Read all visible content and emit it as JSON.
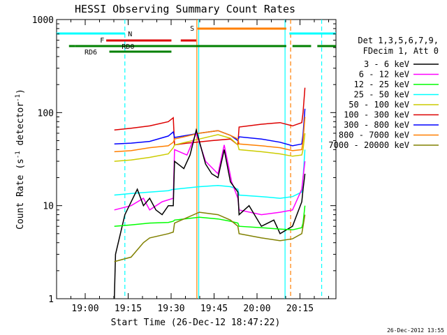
{
  "chart_data": {
    "type": "line",
    "title": "HESSI Observing Summary Count Rates",
    "xlabel": "Start Time (26-Dec-12 18:47:22)",
    "ylabel_parts": [
      "Count Rate (s",
      "-1",
      " detector",
      "-1",
      ")"
    ],
    "yscale": "log",
    "ylim": [
      1,
      1000
    ],
    "xlim_minutes": [
      -15,
      30
    ],
    "x_ticks": [
      "19:00",
      "19:15",
      "19:30",
      "19:45",
      "20:00",
      "20:15"
    ],
    "y_ticks": [
      "1",
      "10",
      "100",
      "1000"
    ],
    "timestamp": "26-Dec-2012 13:55",
    "legend": {
      "header": [
        "Det 1,3,5,6,7,9,",
        "FDecim 1, Att 0"
      ],
      "position": "right",
      "entries": [
        {
          "label": "3 - 6 keV",
          "color": "#000000"
        },
        {
          "label": "6 - 12 keV",
          "color": "#ff00ff"
        },
        {
          "label": "12 - 25 keV",
          "color": "#00ff00"
        },
        {
          "label": "25 - 50 keV",
          "color": "#00ffff"
        },
        {
          "label": "50 - 100 keV",
          "color": "#cccc00"
        },
        {
          "label": "100 - 300 keV",
          "color": "#dd0000"
        },
        {
          "label": "300 - 800 keV",
          "color": "#0000ff"
        },
        {
          "label": "800 - 7000 keV",
          "color": "#ff7f00"
        },
        {
          "label": "7000 - 20000 keV",
          "color": "#808000"
        }
      ]
    },
    "flag_labels": {
      "night": "N",
      "flare": "F",
      "saa": "S",
      "rd0": "RD0",
      "rd6": "RD6"
    },
    "flag_colors": {
      "night": "#00ffff",
      "flare": "#dd0000",
      "saa": "#ff7f00",
      "decim": "#008000"
    },
    "flag_bars": {
      "night": [
        [
          -15,
          -4
        ],
        [
          22.5,
          30
        ]
      ],
      "flare": [
        [
          -7,
          3.5
        ],
        [
          5,
          7.5
        ]
      ],
      "saa": [
        [
          7.7,
          22
        ]
      ],
      "rd0": [
        [
          -13,
          -12
        ],
        [
          -12,
          22
        ],
        [
          23,
          26
        ],
        [
          27,
          30
        ]
      ],
      "rd6": [
        [
          -6.5,
          3.5
        ]
      ]
    },
    "vertical_markers": [
      {
        "t": -4,
        "color": "#00ffff",
        "style": "dashed"
      },
      {
        "t": 7.6,
        "color": "#ff7f00",
        "style": "solid"
      },
      {
        "t": 7.9,
        "color": "#00ffff",
        "style": "solid"
      },
      {
        "t": 21.8,
        "color": "#00ffff",
        "style": "solid"
      },
      {
        "t": 22.7,
        "color": "#ff7f00",
        "style": "dashed"
      },
      {
        "t": 27.7,
        "color": "#00ffff",
        "style": "dashed"
      }
    ],
    "series": [
      {
        "label": "100 - 300 keV",
        "color": "#dd0000",
        "points": [
          [
            -5.7,
            65
          ],
          [
            -3,
            68
          ],
          [
            0,
            72
          ],
          [
            3,
            80
          ],
          [
            3.8,
            88
          ],
          [
            4,
            45
          ],
          [
            6,
            47
          ],
          [
            10,
            50
          ],
          [
            13,
            52
          ],
          [
            14.2,
            45
          ],
          [
            14.4,
            70
          ],
          [
            18,
            75
          ],
          [
            21,
            78
          ],
          [
            23,
            72
          ],
          [
            24.5,
            78
          ],
          [
            24.7,
            100
          ],
          [
            25,
            185
          ]
        ]
      },
      {
        "label": "300 - 800 keV",
        "color": "#0000ff",
        "points": [
          [
            -5.7,
            46
          ],
          [
            -3,
            47
          ],
          [
            0,
            49
          ],
          [
            3,
            56
          ],
          [
            3.8,
            62
          ],
          [
            4,
            54
          ],
          [
            8,
            60
          ],
          [
            11,
            64
          ],
          [
            13,
            57
          ],
          [
            14.2,
            50
          ],
          [
            14.4,
            55
          ],
          [
            18,
            52
          ],
          [
            21,
            48
          ],
          [
            23,
            44
          ],
          [
            24.5,
            46
          ],
          [
            24.7,
            58
          ],
          [
            25,
            110
          ]
        ]
      },
      {
        "label": "800 - 7000 keV",
        "color": "#ff7f00",
        "points": [
          [
            -5.7,
            38
          ],
          [
            -3,
            39
          ],
          [
            0,
            42
          ],
          [
            3,
            44
          ],
          [
            3.8,
            48
          ],
          [
            4,
            52
          ],
          [
            8,
            60
          ],
          [
            11,
            64
          ],
          [
            13,
            57
          ],
          [
            14.2,
            52
          ],
          [
            14.4,
            46
          ],
          [
            18,
            44
          ],
          [
            21,
            42
          ],
          [
            23,
            39
          ],
          [
            24.5,
            40
          ],
          [
            24.7,
            50
          ],
          [
            25,
            90
          ]
        ]
      },
      {
        "label": "50 - 100 keV",
        "color": "#cccc00",
        "points": [
          [
            -5.7,
            30
          ],
          [
            -3,
            31
          ],
          [
            0,
            33
          ],
          [
            3,
            36
          ],
          [
            3.8,
            42
          ],
          [
            4,
            45
          ],
          [
            8,
            52
          ],
          [
            11,
            58
          ],
          [
            13,
            53
          ],
          [
            14.2,
            45
          ],
          [
            14.4,
            40
          ],
          [
            18,
            38
          ],
          [
            21,
            36
          ],
          [
            23,
            34
          ],
          [
            24.5,
            35
          ],
          [
            24.7,
            40
          ],
          [
            25,
            60
          ]
        ]
      },
      {
        "label": "25 - 50 keV",
        "color": "#00ffff",
        "points": [
          [
            -5.7,
            13
          ],
          [
            -3,
            13.5
          ],
          [
            0,
            14
          ],
          [
            3,
            14.5
          ],
          [
            3.8,
            15
          ],
          [
            4,
            15
          ],
          [
            8,
            16
          ],
          [
            11,
            16.5
          ],
          [
            13,
            16
          ],
          [
            14.2,
            15
          ],
          [
            14.4,
            13
          ],
          [
            18,
            12.5
          ],
          [
            21,
            12
          ],
          [
            23,
            12.5
          ],
          [
            24.5,
            14
          ],
          [
            24.7,
            20
          ],
          [
            25,
            40
          ]
        ]
      },
      {
        "label": "6 - 12 keV",
        "color": "#ff00ff",
        "points": [
          [
            -5.7,
            9
          ],
          [
            -3,
            10
          ],
          [
            -1,
            12
          ],
          [
            0,
            9
          ],
          [
            2,
            11
          ],
          [
            3.8,
            12
          ],
          [
            4,
            40
          ],
          [
            6,
            35
          ],
          [
            7.5,
            60
          ],
          [
            9,
            30
          ],
          [
            11,
            22
          ],
          [
            12,
            45
          ],
          [
            13.2,
            18
          ],
          [
            14.2,
            12
          ],
          [
            14.4,
            9
          ],
          [
            18,
            8
          ],
          [
            21,
            8.5
          ],
          [
            23,
            9
          ],
          [
            24.5,
            15
          ],
          [
            24.7,
            20
          ],
          [
            25,
            30
          ]
        ]
      },
      {
        "label": "3 - 6 keV",
        "color": "#000000",
        "points": [
          [
            -5.7,
            1
          ],
          [
            -5.5,
            3
          ],
          [
            -4,
            8
          ],
          [
            -2,
            15
          ],
          [
            -1,
            10
          ],
          [
            0,
            12
          ],
          [
            1,
            9
          ],
          [
            2,
            8
          ],
          [
            3,
            10
          ],
          [
            3.8,
            10
          ],
          [
            4,
            30
          ],
          [
            5.5,
            25
          ],
          [
            6.5,
            35
          ],
          [
            7.5,
            65
          ],
          [
            9,
            28
          ],
          [
            10,
            22
          ],
          [
            11,
            20
          ],
          [
            12,
            40
          ],
          [
            13,
            18
          ],
          [
            14.2,
            14
          ],
          [
            14.4,
            8
          ],
          [
            16,
            10
          ],
          [
            18,
            6
          ],
          [
            20,
            7
          ],
          [
            21,
            5
          ],
          [
            23,
            6
          ],
          [
            24.5,
            11
          ],
          [
            24.7,
            15
          ],
          [
            25,
            22
          ]
        ]
      },
      {
        "label": "12 - 25 keV",
        "color": "#00ff00",
        "points": [
          [
            -5.7,
            6
          ],
          [
            -3,
            6.2
          ],
          [
            0,
            6.5
          ],
          [
            3,
            6.6
          ],
          [
            3.8,
            6.8
          ],
          [
            4,
            7
          ],
          [
            8,
            7.5
          ],
          [
            11,
            7.2
          ],
          [
            13,
            6.8
          ],
          [
            14.2,
            6.5
          ],
          [
            14.4,
            6
          ],
          [
            18,
            5.8
          ],
          [
            21,
            5.6
          ],
          [
            23,
            5.5
          ],
          [
            24.5,
            5.8
          ],
          [
            24.7,
            6.5
          ],
          [
            25,
            10
          ]
        ]
      },
      {
        "label": "7000 - 20000 keV",
        "color": "#808000",
        "points": [
          [
            -5.7,
            2.5
          ],
          [
            -3,
            2.8
          ],
          [
            -1,
            4
          ],
          [
            0,
            4.5
          ],
          [
            3,
            5
          ],
          [
            3.8,
            5.2
          ],
          [
            4,
            6.5
          ],
          [
            8,
            8.5
          ],
          [
            11,
            8
          ],
          [
            13,
            7
          ],
          [
            14.2,
            6
          ],
          [
            14.4,
            5
          ],
          [
            18,
            4.5
          ],
          [
            21,
            4.2
          ],
          [
            23,
            4.4
          ],
          [
            24.5,
            5
          ],
          [
            24.7,
            6
          ],
          [
            25,
            8
          ]
        ]
      }
    ]
  }
}
